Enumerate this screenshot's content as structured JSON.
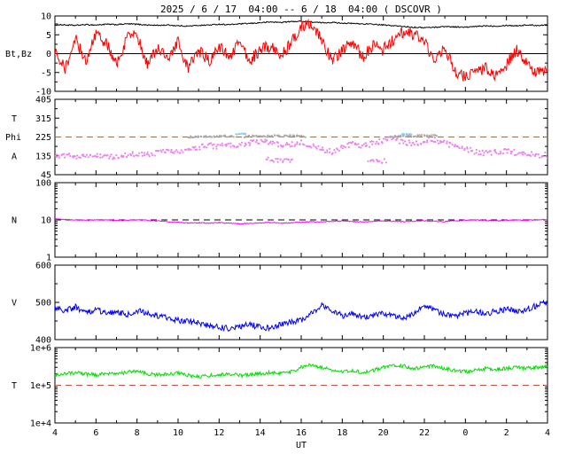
{
  "chart_data": {
    "type": "line",
    "title": "2025 / 6 / 17  04:00 -- 6 / 18  04:00 ( DSCOVR )",
    "xlabel": "UT",
    "x_ticks": [
      "4",
      "6",
      "8",
      "10",
      "12",
      "14",
      "16",
      "18",
      "20",
      "22",
      "0",
      "2",
      "4"
    ],
    "x_hours_span": 24,
    "panels": [
      {
        "type": "line",
        "scale": "linear",
        "ylim": [
          -10,
          10
        ],
        "yticks": [
          {
            "v": 10,
            "label": "10"
          },
          {
            "v": 5,
            "label": "5"
          },
          {
            "v": 0,
            "label": "0"
          },
          {
            "v": -5,
            "label": "-5"
          },
          {
            "v": -10,
            "label": "-10"
          }
        ],
        "minor_yticks": [
          7.5,
          2.5,
          -2.5,
          -7.5
        ],
        "labels": [
          {
            "text": "Bt,Bz",
            "v": 0
          }
        ],
        "reflines": [
          {
            "v": 0,
            "dash": false,
            "color": "#000000"
          }
        ],
        "series": [
          {
            "name": "Bt",
            "color": "#000000",
            "mode": "line",
            "noise": 0.15,
            "values": [
              7.8,
              7.6,
              7.5,
              7.7,
              7.6,
              7.8,
              7.7,
              7.9,
              7.8,
              7.6,
              7.5,
              7.6,
              7.4,
              7.3,
              7.5,
              7.6,
              7.8,
              7.7,
              7.9,
              8.0,
              8.2,
              8.4,
              8.3,
              8.5,
              8.6,
              8.4,
              8.2,
              8.3,
              8.1,
              8.0,
              7.9,
              7.8,
              7.6,
              7.4,
              7.2,
              7.0,
              6.9,
              7.0,
              7.2,
              7.1,
              7.0,
              7.2,
              7.4,
              7.3,
              7.5,
              7.4,
              7.6,
              7.5,
              7.6
            ]
          },
          {
            "name": "Bz",
            "color": "#ff0000",
            "mode": "line",
            "noise": 1.6,
            "values": [
              1,
              -4,
              4,
              -2,
              5,
              3,
              -3,
              4,
              5,
              -3,
              2,
              -2,
              3,
              -4,
              1,
              -2,
              2,
              -1,
              3,
              -2,
              1,
              2,
              -1,
              3,
              7,
              8,
              4,
              -2,
              1,
              3,
              -1,
              2,
              1,
              4,
              6,
              5,
              3,
              -2,
              2,
              -5,
              -6,
              -5,
              -4,
              -6,
              -3,
              1,
              -3,
              -5,
              -4
            ]
          }
        ]
      },
      {
        "type": "scatter",
        "scale": "linear",
        "ylim": [
          45,
          405
        ],
        "yticks": [
          {
            "v": 405,
            "label": "405"
          },
          {
            "v": 315,
            "label": "315"
          },
          {
            "v": 225,
            "label": "225"
          },
          {
            "v": 135,
            "label": "135"
          },
          {
            "v": 45,
            "label": "45"
          }
        ],
        "minor_yticks": [
          90,
          180,
          270,
          360
        ],
        "labels": [
          {
            "text": "T",
            "v": 315
          },
          {
            "text": "Phi",
            "v": 225
          },
          {
            "text": "A",
            "v": 135
          }
        ],
        "reflines": [
          {
            "v": 225,
            "dash": true,
            "color": "#8b7355"
          }
        ],
        "series": [
          {
            "name": "Phi",
            "color": "#ee82ee",
            "mode": "scatter",
            "noise": 13,
            "values": [
              138,
              135,
              130,
              136,
              140,
              134,
              128,
              138,
              144,
              140,
              148,
              155,
              150,
              160,
              175,
              185,
              180,
              190,
              185,
              195,
              205,
              195,
              185,
              190,
              200,
              180,
              165,
              155,
              175,
              190,
              180,
              195,
              205,
              215,
              200,
              190,
              205,
              212,
              195,
              180,
              165,
              155,
              148,
              152,
              158,
              150,
              145,
              140,
              137
            ]
          },
          {
            "name": "Phi-outliers-a",
            "color": "#ee82ee",
            "mode": "scatter",
            "noise": 10,
            "domain": [
              10.3,
              11.6
            ],
            "values": [
              120,
              110,
              115
            ]
          },
          {
            "name": "Phi-outliers-b",
            "color": "#ee82ee",
            "mode": "scatter",
            "noise": 10,
            "domain": [
              15.3,
              16.1
            ],
            "values": [
              115,
              108,
              112
            ]
          },
          {
            "name": "Phi-grey-a",
            "color": "#aaaaaa",
            "mode": "scatter",
            "noise": 4,
            "domain": [
              6.5,
              8.7
            ],
            "values": [
              224,
              228,
              226,
              230,
              227
            ]
          },
          {
            "name": "Phi-grey-b",
            "color": "#aaaaaa",
            "mode": "scatter",
            "noise": 4,
            "domain": [
              9.2,
              12.2
            ],
            "values": [
              226,
              230,
              228,
              232,
              229,
              231,
              228
            ]
          },
          {
            "name": "Phi-grey-c",
            "color": "#aaaaaa",
            "mode": "scatter",
            "noise": 4,
            "domain": [
              16.3,
              18.6
            ],
            "values": [
              227,
              231,
              229,
              233,
              230
            ]
          },
          {
            "name": "Phi-blue-a",
            "color": "#87ceeb",
            "mode": "scatter",
            "noise": 3,
            "domain": [
              8.8,
              9.3
            ],
            "values": [
              238,
              242,
              240
            ]
          },
          {
            "name": "Phi-blue-b",
            "color": "#87ceeb",
            "mode": "scatter",
            "noise": 3,
            "domain": [
              16.9,
              17.4
            ],
            "values": [
              236,
              240,
              238
            ]
          }
        ]
      },
      {
        "type": "line",
        "scale": "log",
        "ylim": [
          1,
          100
        ],
        "yticks": [
          {
            "v": 100,
            "label": "100"
          },
          {
            "v": 10,
            "label": "10"
          },
          {
            "v": 1,
            "label": "1"
          }
        ],
        "minor_yticks": [
          2,
          3,
          4,
          5,
          6,
          7,
          8,
          9,
          20,
          30,
          40,
          50,
          60,
          70,
          80,
          90
        ],
        "labels": [
          {
            "text": "N",
            "v": 10
          }
        ],
        "reflines": [
          {
            "v": 10,
            "dash": true,
            "color": "#000000"
          }
        ],
        "series": [
          {
            "name": "N",
            "color": "#ff00ff",
            "mode": "line",
            "noise": 0.013,
            "values": [
              10.5,
              10.2,
              10,
              9.8,
              10,
              9.9,
              9.6,
              9.8,
              10,
              9.7,
              9.4,
              9,
              8.6,
              8.2,
              8.4,
              8.1,
              8.5,
              8.2,
              7.9,
              8.1,
              8.3,
              8.6,
              8.2,
              8.4,
              8.6,
              9,
              8.8,
              9.1,
              9.3,
              9,
              8.8,
              9.1,
              9.5,
              9.2,
              9,
              9.3,
              9.6,
              9.2,
              9,
              9.5,
              9.8,
              10,
              9.7,
              9.4,
              9.8,
              10,
              9.8,
              10.1,
              10.2
            ]
          }
        ]
      },
      {
        "type": "line",
        "scale": "linear",
        "ylim": [
          400,
          600
        ],
        "yticks": [
          {
            "v": 600,
            "label": "600"
          },
          {
            "v": 500,
            "label": "500"
          },
          {
            "v": 400,
            "label": "400"
          }
        ],
        "minor_yticks": [
          450,
          550
        ],
        "labels": [
          {
            "text": "V",
            "v": 500
          }
        ],
        "reflines": [],
        "series": [
          {
            "name": "V",
            "color": "#0000ff",
            "mode": "line",
            "noise": 8,
            "values": [
              485,
              478,
              488,
              472,
              482,
              470,
              476,
              466,
              478,
              470,
              464,
              458,
              452,
              448,
              444,
              438,
              434,
              430,
              436,
              440,
              434,
              430,
              440,
              446,
              452,
              472,
              492,
              480,
              464,
              470,
              458,
              464,
              470,
              464,
              458,
              470,
              492,
              478,
              468,
              464,
              470,
              476,
              470,
              476,
              482,
              476,
              482,
              492,
              500
            ]
          }
        ]
      },
      {
        "type": "line",
        "scale": "log",
        "ylim": [
          10000,
          1000000
        ],
        "yticks": [
          {
            "v": 1000000,
            "label": "1e+6"
          },
          {
            "v": 100000,
            "label": "1e+5"
          },
          {
            "v": 10000,
            "label": "1e+4"
          }
        ],
        "minor_yticks": [
          20000,
          30000,
          40000,
          50000,
          60000,
          70000,
          80000,
          90000,
          200000,
          300000,
          400000,
          500000,
          600000,
          700000,
          800000,
          900000
        ],
        "labels": [
          {
            "text": "T",
            "v": 100000
          }
        ],
        "reflines": [
          {
            "v": 100000,
            "dash": true,
            "color": "#bb5544"
          }
        ],
        "series": [
          {
            "name": "T",
            "color": "#00dd00",
            "mode": "line",
            "noise": 0.05,
            "values": [
              180000,
              200000,
              220000,
              200000,
              190000,
              210000,
              200000,
              220000,
              230000,
              200000,
              190000,
              200000,
              210000,
              180000,
              170000,
              180000,
              190000,
              200000,
              180000,
              190000,
              200000,
              220000,
              210000,
              230000,
              300000,
              350000,
              300000,
              250000,
              220000,
              240000,
              220000,
              250000,
              300000,
              350000,
              320000,
              280000,
              300000,
              320000,
              280000,
              250000,
              230000,
              250000,
              280000,
              260000,
              280000,
              300000,
              280000,
              300000,
              320000
            ]
          }
        ]
      }
    ]
  }
}
